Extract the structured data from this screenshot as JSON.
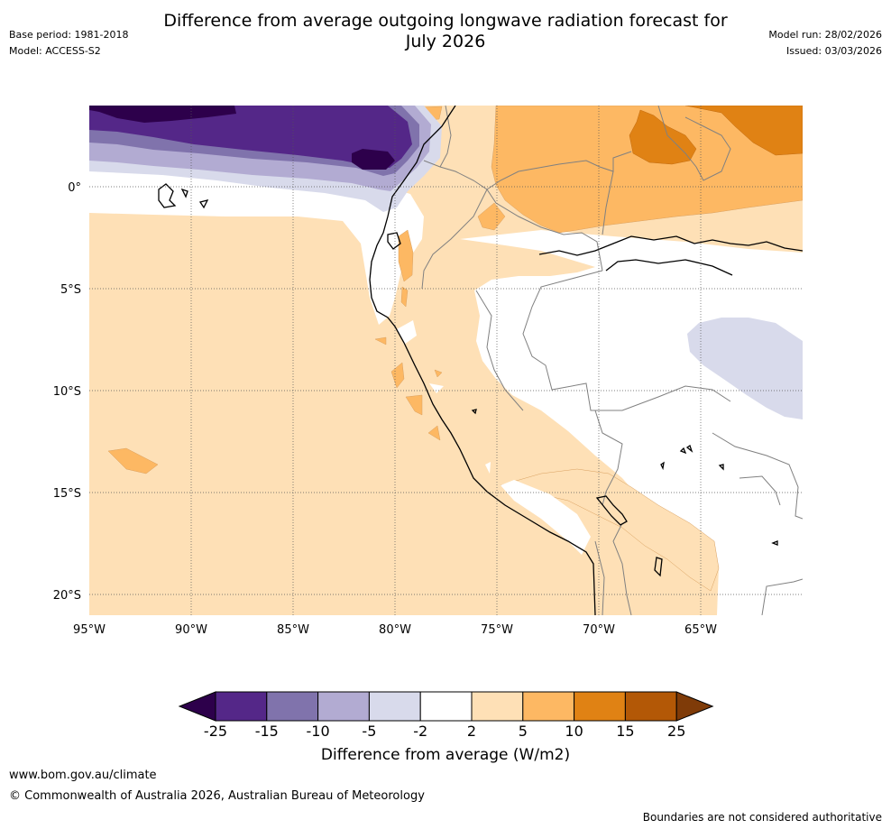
{
  "title": {
    "line1": "Difference from average outgoing longwave radiation forecast for",
    "line2": "July 2026"
  },
  "meta": {
    "base_period": "Base period: 1981-2018",
    "model": "Model: ACCESS-S2",
    "model_run": "Model run: 28/02/2026",
    "issued": "Issued: 03/03/2026"
  },
  "map": {
    "lon_ticks": [
      "95°W",
      "90°W",
      "85°W",
      "80°W",
      "75°W",
      "70°W",
      "65°W"
    ],
    "lat_ticks": [
      "0°",
      "5°S",
      "10°S",
      "15°S",
      "20°S"
    ]
  },
  "colorbar": {
    "tick_labels": [
      "-25",
      "-15",
      "-10",
      "-5",
      "-2",
      "2",
      "5",
      "10",
      "15",
      "25"
    ],
    "colors": [
      "#2d004b",
      "#542788",
      "#8073ac",
      "#b2abd2",
      "#d8daeb",
      "#ffffff",
      "#fee0b6",
      "#fdb863",
      "#e08214",
      "#b35806",
      "#7f3b08"
    ],
    "label": "Difference from average (W/m2)"
  },
  "footer": {
    "url": "www.bom.gov.au/climate",
    "copyright": "© Commonwealth of Australia 2026, Australian Bureau of Meteorology",
    "disclaimer": "Boundaries are not considered authoritative"
  }
}
